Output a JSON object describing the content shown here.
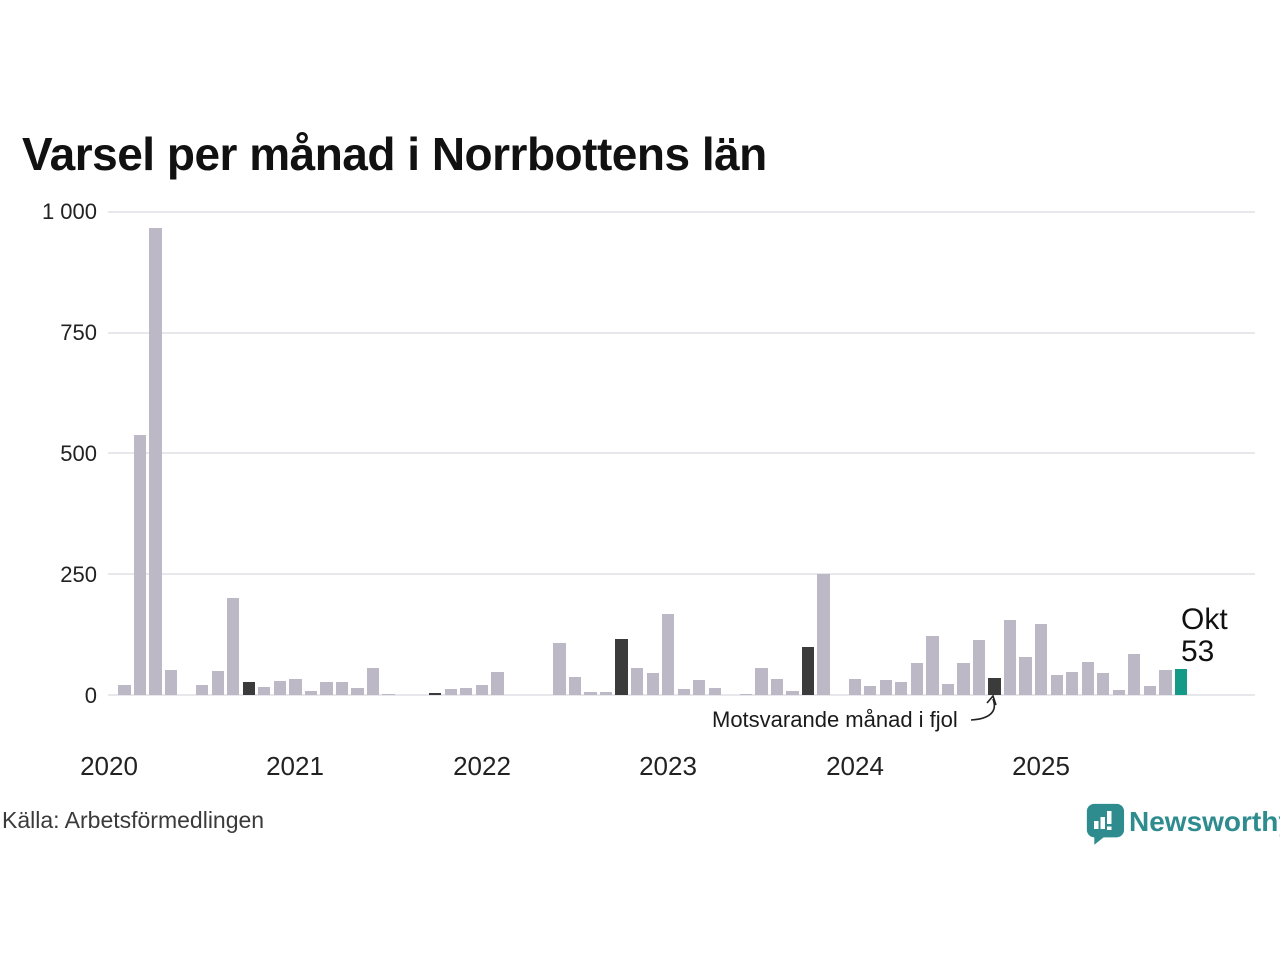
{
  "title": "Varsel per månad i Norrbottens län",
  "source": "Källa: Arbetsförmedlingen",
  "annotation": {
    "text": "Motsvarande månad i fjol"
  },
  "current_label": {
    "month": "Okt",
    "value": "53"
  },
  "logo": {
    "text": "Newsworthy",
    "icon": "newsworthy-speech-bubble-chart-icon"
  },
  "colors": {
    "bar_default": "#bcb8c6",
    "bar_same_month_last_year": "#3b3b3b",
    "bar_current": "#169a88",
    "gridline": "#e8e8ec",
    "text": "#1a1a1a",
    "logo_teal": "#2e8c8e"
  },
  "chart_data": {
    "type": "bar",
    "title": "Varsel per månad i Norrbottens län",
    "region": "Norrbottens län",
    "x_start_month": "2020-01",
    "x_end_month": "2025-10",
    "ylim": [
      0,
      1000
    ],
    "grid": "horizontal",
    "legend_position": "none",
    "ytick_values": [
      0,
      250,
      500,
      750,
      1000
    ],
    "ytick_labels": [
      "0",
      "250",
      "500",
      "750",
      "1 000"
    ],
    "year_labels": [
      "2020",
      "2021",
      "2022",
      "2023",
      "2024",
      "2025"
    ],
    "values_by_year": {
      "2020": [
        0,
        21,
        539,
        966,
        51,
        0,
        21,
        50,
        200,
        28,
        16,
        29
      ],
      "2021": [
        33,
        9,
        27,
        28,
        14,
        55,
        3,
        0,
        0,
        5,
        12,
        15
      ],
      "2022": [
        21,
        47,
        0,
        0,
        0,
        108,
        37,
        6,
        7,
        117,
        56,
        45
      ],
      "2023": [
        168,
        13,
        31,
        14,
        0,
        3,
        57,
        33,
        9,
        100,
        250,
        0
      ],
      "2024": [
        33,
        18,
        32,
        27,
        66,
        123,
        22,
        66,
        113,
        36,
        155,
        78
      ],
      "2025": [
        147,
        42,
        47,
        68,
        45,
        11,
        85,
        18,
        52,
        53
      ]
    },
    "highlighted_dark_months": [
      "2020-10",
      "2021-10",
      "2022-10",
      "2023-10",
      "2024-10"
    ],
    "highlighted_dark_meaning": "Motsvarande månad i fjol",
    "current_month": {
      "label": "Okt",
      "year": 2025,
      "value": 53
    }
  }
}
